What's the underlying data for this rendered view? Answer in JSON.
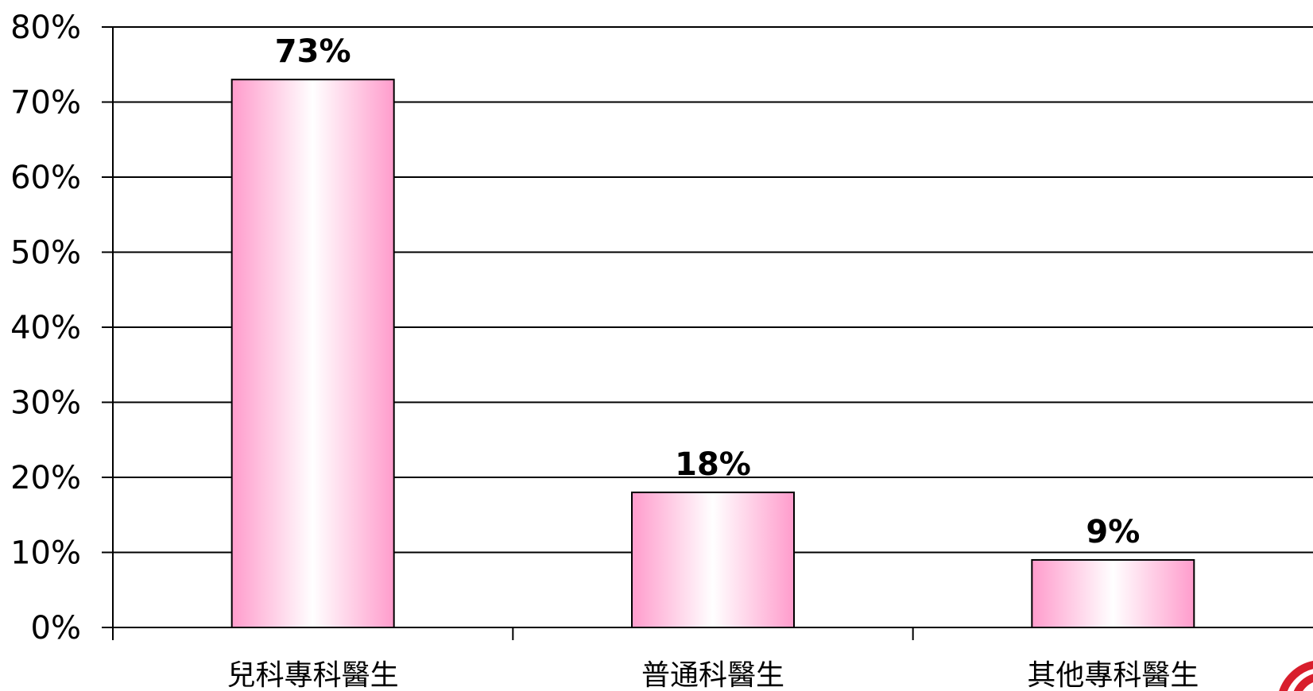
{
  "chart_data": {
    "type": "bar",
    "categories": [
      "兒科專科醫生",
      "普通科醫生",
      "其他專科醫生"
    ],
    "values": [
      73,
      18,
      9
    ],
    "data_labels": [
      "73%",
      "18%",
      "9%"
    ],
    "ylim": [
      0,
      80
    ],
    "ytick_values": [
      0,
      10,
      20,
      30,
      40,
      50,
      60,
      70,
      80
    ],
    "ytick_labels": [
      "0%",
      "10%",
      "20%",
      "30%",
      "40%",
      "50%",
      "60%",
      "70%",
      "80%"
    ],
    "grid": true,
    "legend": "none",
    "colors": {
      "bar_edge": "#ff9ccc",
      "bar_center": "#ffffff",
      "bar_outline": "#000000",
      "logo": "#d81e2c"
    }
  }
}
